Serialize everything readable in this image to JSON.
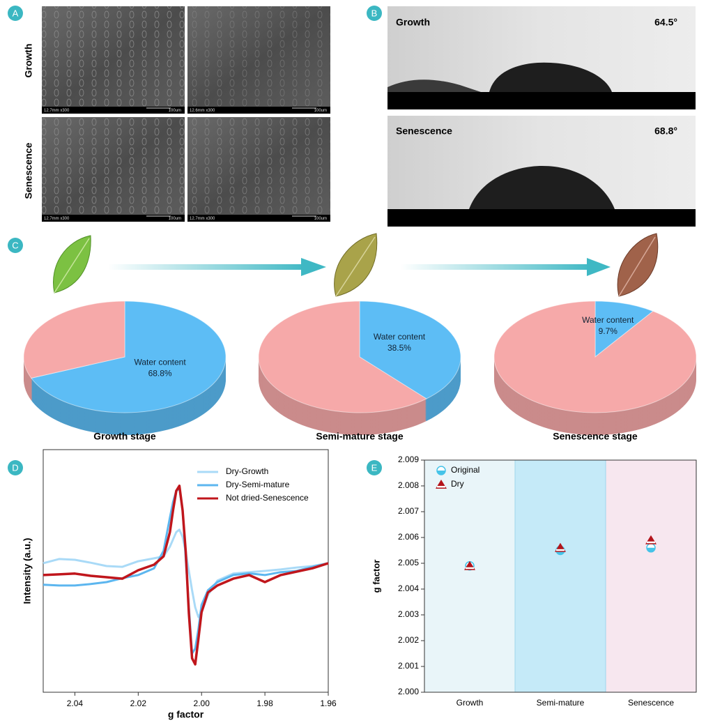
{
  "panel_labels": [
    "A",
    "B",
    "C",
    "D",
    "E"
  ],
  "sem": {
    "row_labels": [
      "Growth",
      "Senescence"
    ],
    "micrographs": [
      {
        "caption": "12.7mm x300",
        "scale": "100um"
      },
      {
        "caption": "12.6mm x300",
        "scale": "100um"
      },
      {
        "caption": "12.7mm x300",
        "scale": "100um"
      },
      {
        "caption": "12.7mm x300",
        "scale": "100um"
      }
    ]
  },
  "contact_angle": [
    {
      "label": "Growth",
      "angle": "64.5°"
    },
    {
      "label": "Senescence",
      "angle": "68.8°"
    }
  ],
  "chart_data": [
    {
      "type": "pie",
      "title": "Growth stage",
      "categories": [
        "Water content",
        null
      ],
      "values": [
        68.8,
        31.2
      ],
      "value_labels": [
        "68.8%",
        null
      ],
      "colors": [
        "#5dbdf5",
        "#f6a9a9"
      ]
    },
    {
      "type": "pie",
      "title": "Semi-mature stage",
      "categories": [
        "Water content",
        null
      ],
      "values": [
        38.5,
        61.5
      ],
      "value_labels": [
        "38.5%",
        null
      ],
      "colors": [
        "#5dbdf5",
        "#f6a9a9"
      ]
    },
    {
      "type": "pie",
      "title": "Senescence stage",
      "categories": [
        "Water content",
        null
      ],
      "values": [
        9.7,
        90.3
      ],
      "value_labels": [
        "9.7%",
        null
      ],
      "colors": [
        "#5dbdf5",
        "#f6a9a9"
      ]
    },
    {
      "type": "line",
      "xlabel": "g factor",
      "ylabel": "Intensity (a.u.)",
      "x": [
        2.05,
        2.045,
        2.04,
        2.035,
        2.03,
        2.025,
        2.02,
        2.015,
        2.012,
        2.01,
        2.009,
        2.008,
        2.007,
        2.006,
        2.005,
        2.004,
        2.003,
        2.002,
        2.001,
        2.0,
        1.998,
        1.995,
        1.99,
        1.985,
        1.98,
        1.975,
        1.97,
        1.965,
        1.96
      ],
      "xlim": [
        2.05,
        1.96
      ],
      "xticks": [
        2.04,
        2.02,
        {
          "value": 2.0,
          "label": "2.00"
        },
        1.98,
        1.96
      ],
      "ylim": [
        0,
        100
      ],
      "legend": "upper right",
      "series": [
        {
          "name": "Dry-Growth",
          "color": "#a9daf7",
          "values": [
            53.2,
            54.9,
            54.6,
            53.4,
            52.0,
            51.7,
            54.0,
            55.2,
            56.0,
            60.0,
            63.0,
            66.0,
            67.0,
            64.0,
            58.0,
            50.0,
            42.0,
            35.0,
            31.0,
            33.0,
            40.0,
            46.0,
            48.9,
            49.5,
            50.0,
            50.6,
            51.4,
            52.0,
            53.2
          ]
        },
        {
          "name": "Dry-Semi-mature",
          "color": "#5cb6ef",
          "values": [
            44.3,
            44.0,
            44.0,
            44.6,
            45.4,
            47.0,
            48.3,
            51.1,
            58.3,
            72.0,
            78.4,
            83.0,
            84.0,
            75.0,
            55.0,
            35.0,
            16.0,
            18.0,
            26.0,
            36.0,
            42.0,
            45.4,
            48.3,
            49.0,
            48.3,
            49.5,
            50.0,
            51.7,
            53.2
          ]
        },
        {
          "name": "Not dried-Senescence",
          "color": "#c0161c",
          "values": [
            48.3,
            48.6,
            48.9,
            48.0,
            47.4,
            46.8,
            50.3,
            52.6,
            56.0,
            66.0,
            75.0,
            83.0,
            85.1,
            75.0,
            58.0,
            32.5,
            14.0,
            11.5,
            22.0,
            33.0,
            41.1,
            44.0,
            46.8,
            48.3,
            45.4,
            48.3,
            49.7,
            51.1,
            53.2
          ]
        }
      ]
    },
    {
      "type": "scatter",
      "ylabel": "g factor",
      "categories": [
        "Growth",
        "Semi-mature",
        "Senescence"
      ],
      "band_colors": [
        "#e9f5f9",
        "#c5eaf8",
        "#f7e7ef"
      ],
      "ylim": [
        2.0,
        2.009
      ],
      "yticks": [
        {
          "value": 2.0,
          "label": "2.000"
        },
        2.001,
        2.002,
        2.003,
        2.004,
        2.005,
        2.006,
        2.007,
        2.008,
        2.009
      ],
      "legend": "upper left",
      "series": [
        {
          "name": "Original",
          "color": "#45c3e8",
          "marker": "circle",
          "values": [
            2.0049,
            2.0055,
            2.0056
          ]
        },
        {
          "name": "Dry",
          "color": "#b3141b",
          "marker": "triangle",
          "values": [
            2.0049,
            2.0056,
            2.0059
          ]
        }
      ]
    }
  ]
}
